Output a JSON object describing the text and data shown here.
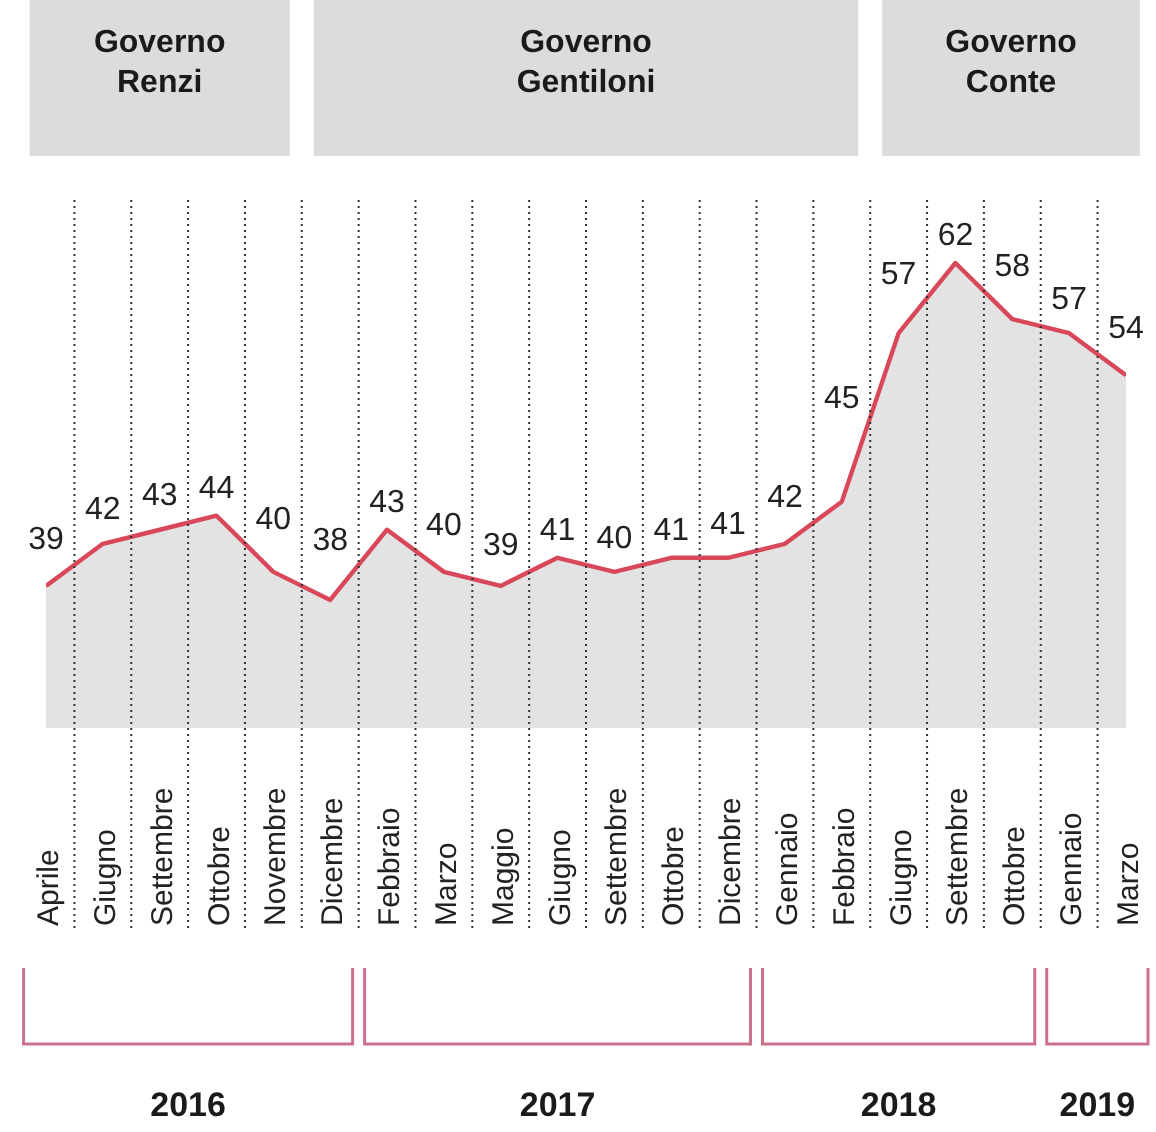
{
  "chart_data": {
    "type": "area",
    "categories": [
      "Aprile",
      "Giugno",
      "Settembre",
      "Ottobre",
      "Novembre",
      "Dicembre",
      "Febbraio",
      "Marzo",
      "Maggio",
      "Giugno",
      "Settembre",
      "Ottobre",
      "Dicembre",
      "Gennaio",
      "Febbraio",
      "Giugno",
      "Settembre",
      "Ottobre",
      "Gennaio",
      "Marzo"
    ],
    "series": [
      {
        "color": "#d9485a",
        "values": [
          39,
          42,
          43,
          44,
          40,
          38,
          43,
          40,
          39,
          41,
          40,
          41,
          41,
          42,
          45,
          57,
          62,
          58,
          57,
          54
        ]
      }
    ],
    "tick_labels": "x",
    "data_labels": true,
    "grid": "x",
    "annotations": [
      "Governo\nRenzi",
      "Governo\nGentiloni",
      "Governo\nConte",
      "2016",
      "2017",
      "2018",
      "2019"
    ]
  }
}
